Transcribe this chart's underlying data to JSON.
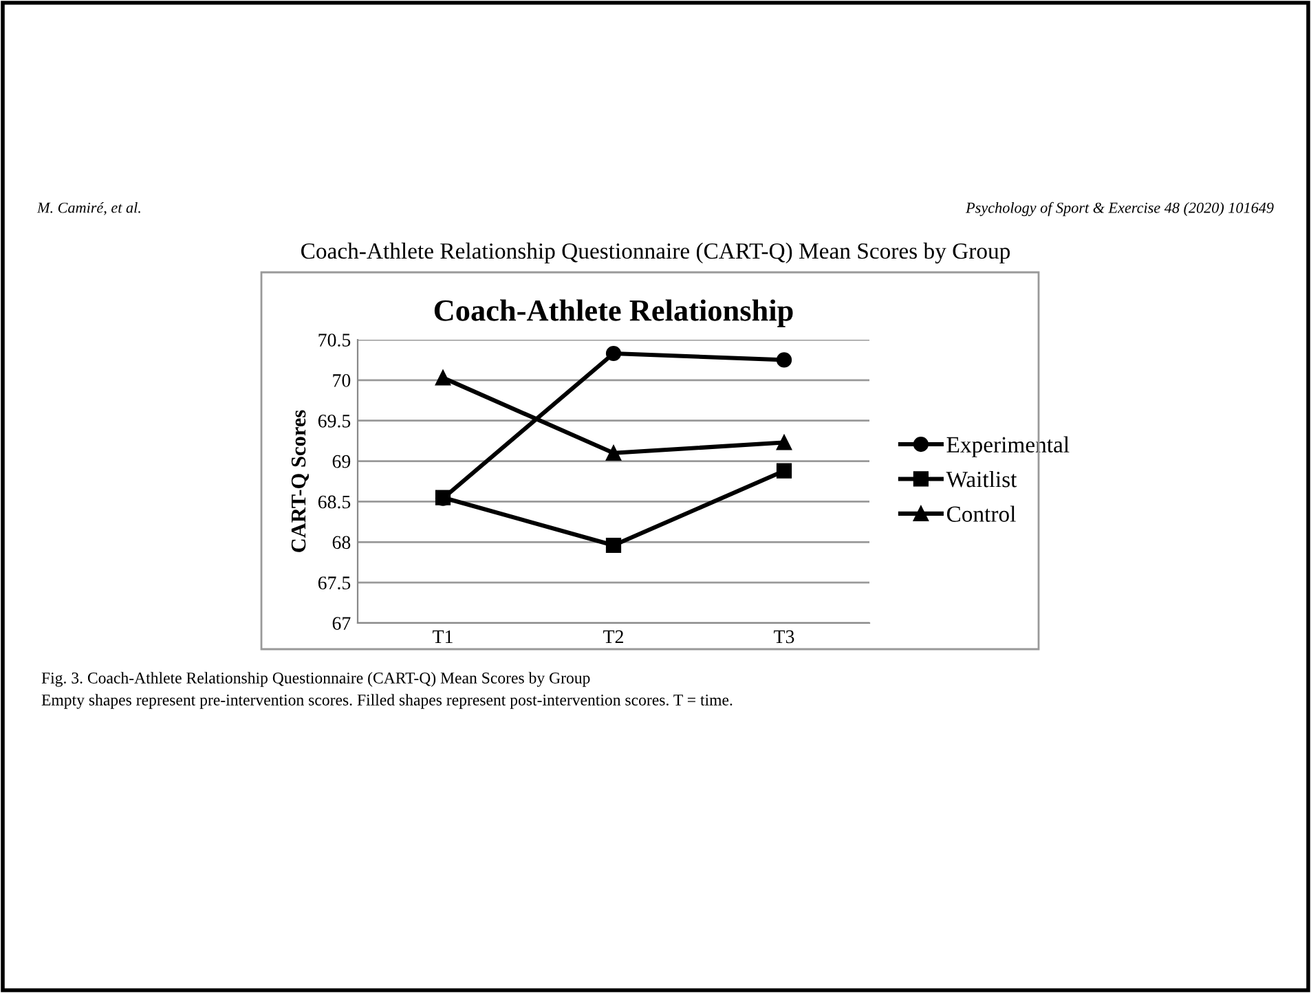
{
  "chart_data": {
    "type": "line",
    "title": "Coach-Athlete Relationship",
    "subtitle": "Coach-Athlete Relationship Questionnaire (CART-Q) Mean Scores by Group",
    "ylabel": "CART-Q Scores",
    "categories": [
      "T1",
      "T2",
      "T3"
    ],
    "series": [
      {
        "name": "Experimental",
        "color": "#000000",
        "marker": "circle",
        "values": [
          68.54,
          70.33,
          70.25
        ]
      },
      {
        "name": "Waitlist",
        "color": "#000000",
        "marker": "square",
        "values": [
          68.55,
          67.96,
          68.88
        ]
      },
      {
        "name": "Control",
        "color": "#000000",
        "marker": "triangle",
        "values": [
          70.03,
          69.1,
          69.23
        ]
      }
    ],
    "ylim": [
      67,
      70.5
    ],
    "yticks": [
      67,
      67.5,
      68,
      68.5,
      69,
      69.5,
      70,
      70.5
    ],
    "grid": "y",
    "legend": "right",
    "line_style": "solid",
    "annotations": [
      "M. Camiré, et al.",
      "Psychology of Sport & Exercise 48 (2020) 101649",
      "Fig. 3. Coach-Athlete Relationship Questionnaire (CART-Q) Mean Scores by Group",
      "Empty shapes represent pre-intervention scores. Filled shapes represent post-intervention scores. T = time."
    ]
  }
}
